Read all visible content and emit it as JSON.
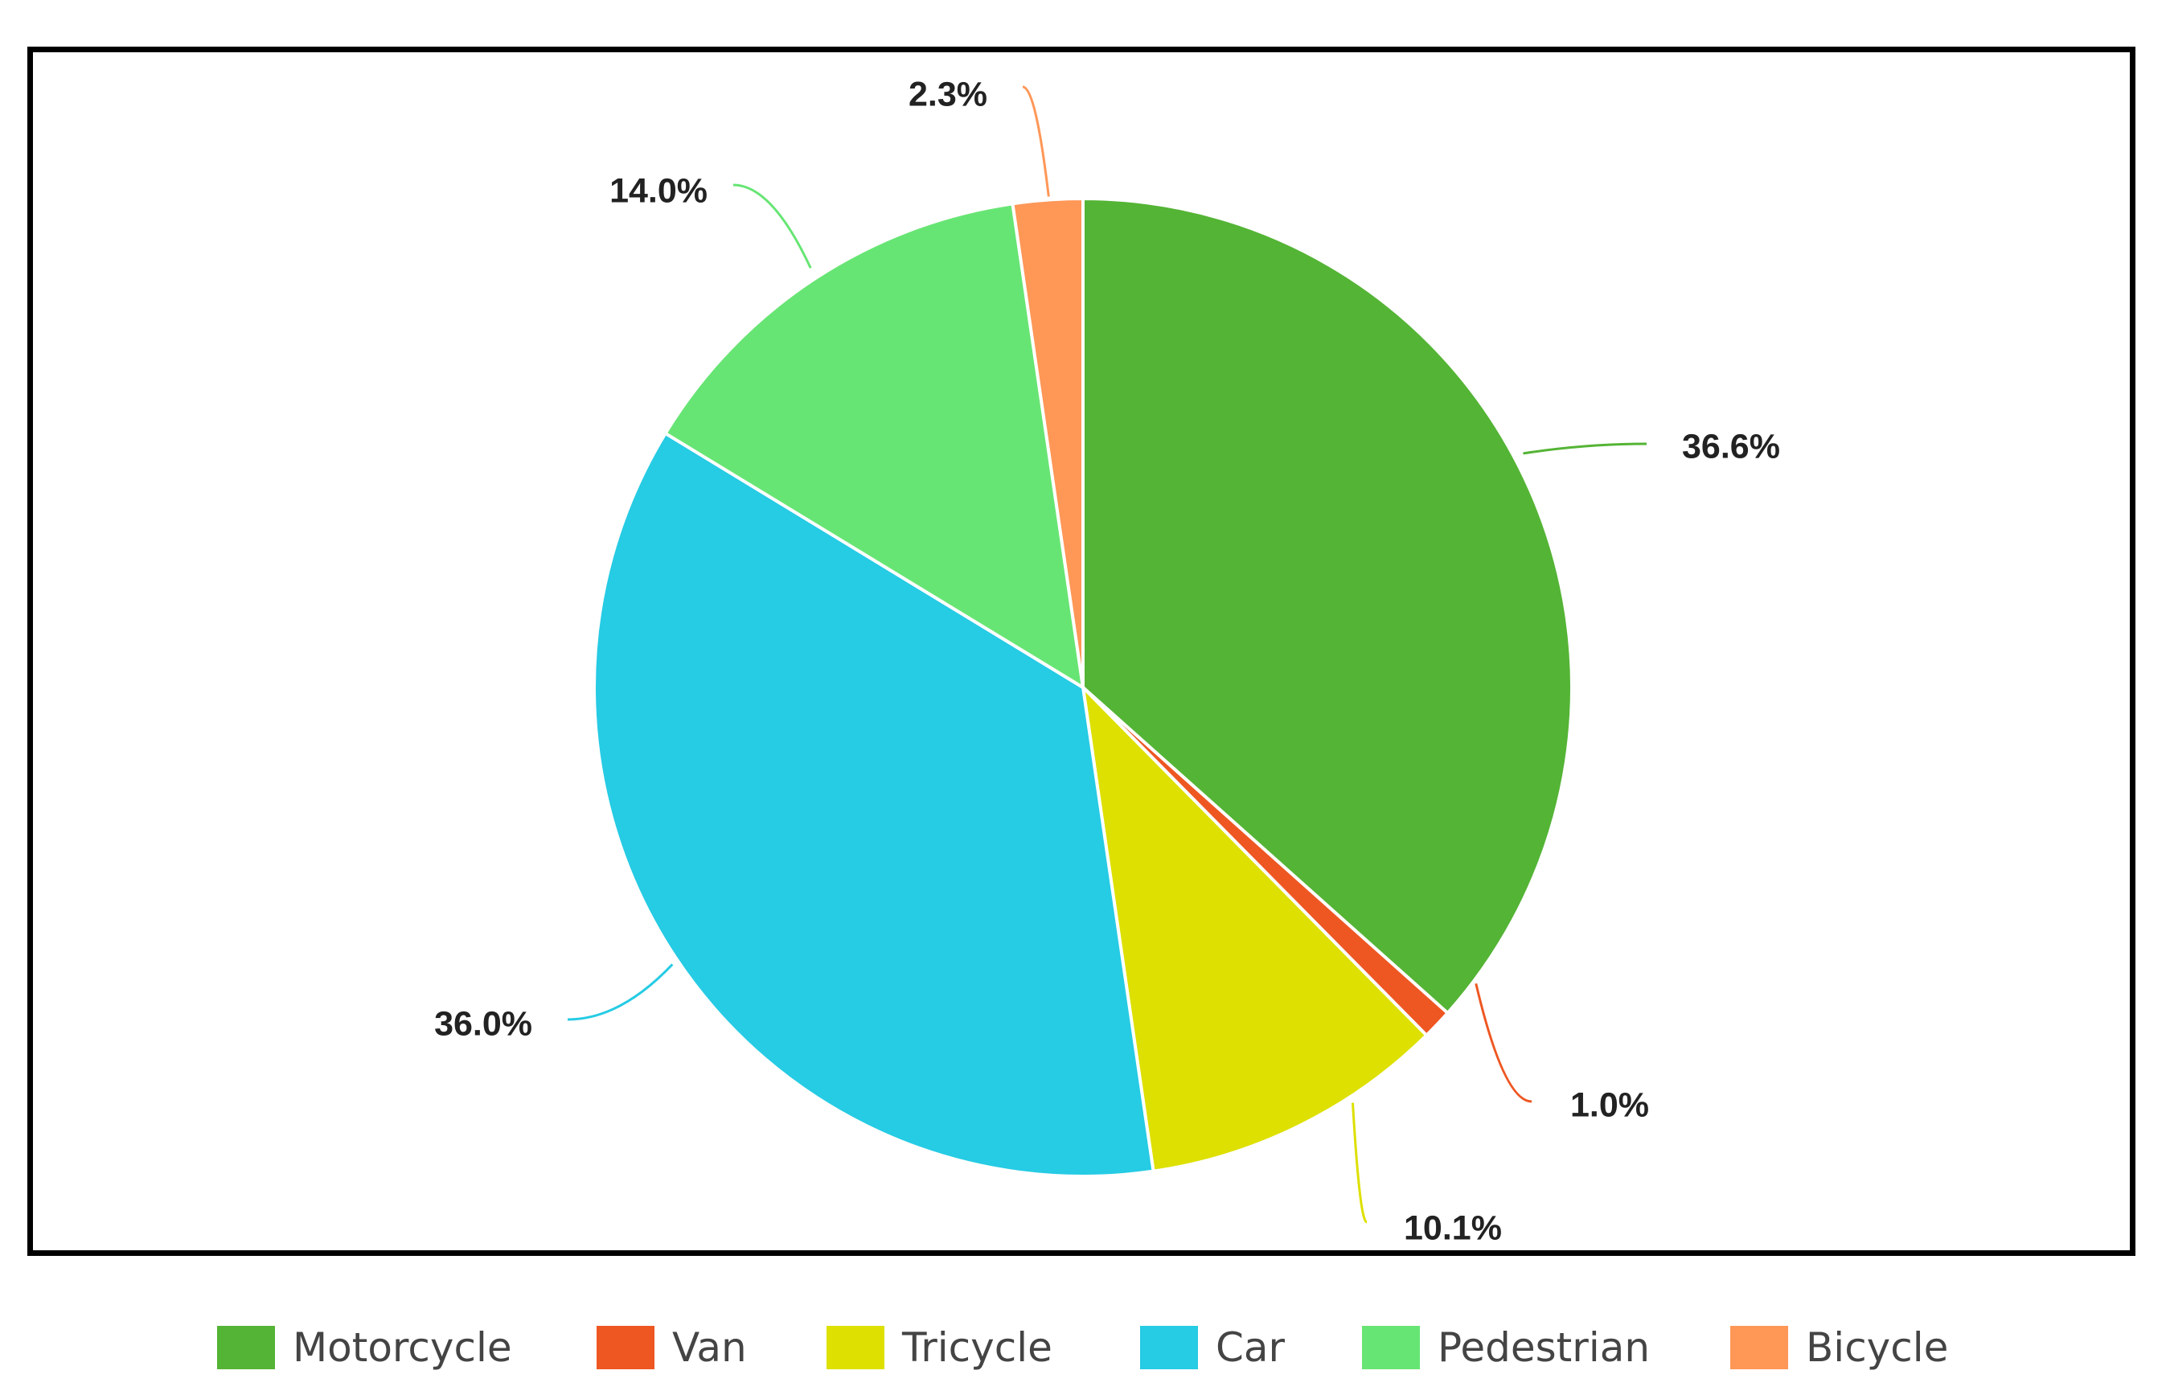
{
  "chart_data": {
    "type": "pie",
    "title": "",
    "slices": [
      {
        "name": "Motorcycle",
        "value": 36.6,
        "label": "36.6%",
        "color": "#54b435"
      },
      {
        "name": "Van",
        "value": 1.0,
        "label": "1.0%",
        "color": "#ee5722"
      },
      {
        "name": "Tricycle",
        "value": 10.1,
        "label": "10.1%",
        "color": "#dde000"
      },
      {
        "name": "Car",
        "value": 36.0,
        "label": "36.0%",
        "color": "#26cbe4"
      },
      {
        "name": "Pedestrian",
        "value": 14.0,
        "label": "14.0%",
        "color": "#67e574"
      },
      {
        "name": "Bicycle",
        "value": 2.3,
        "label": "2.3%",
        "color": "#ff9757"
      }
    ],
    "start_angle": "12 o'clock",
    "direction": "clockwise",
    "legend_position": "bottom"
  }
}
